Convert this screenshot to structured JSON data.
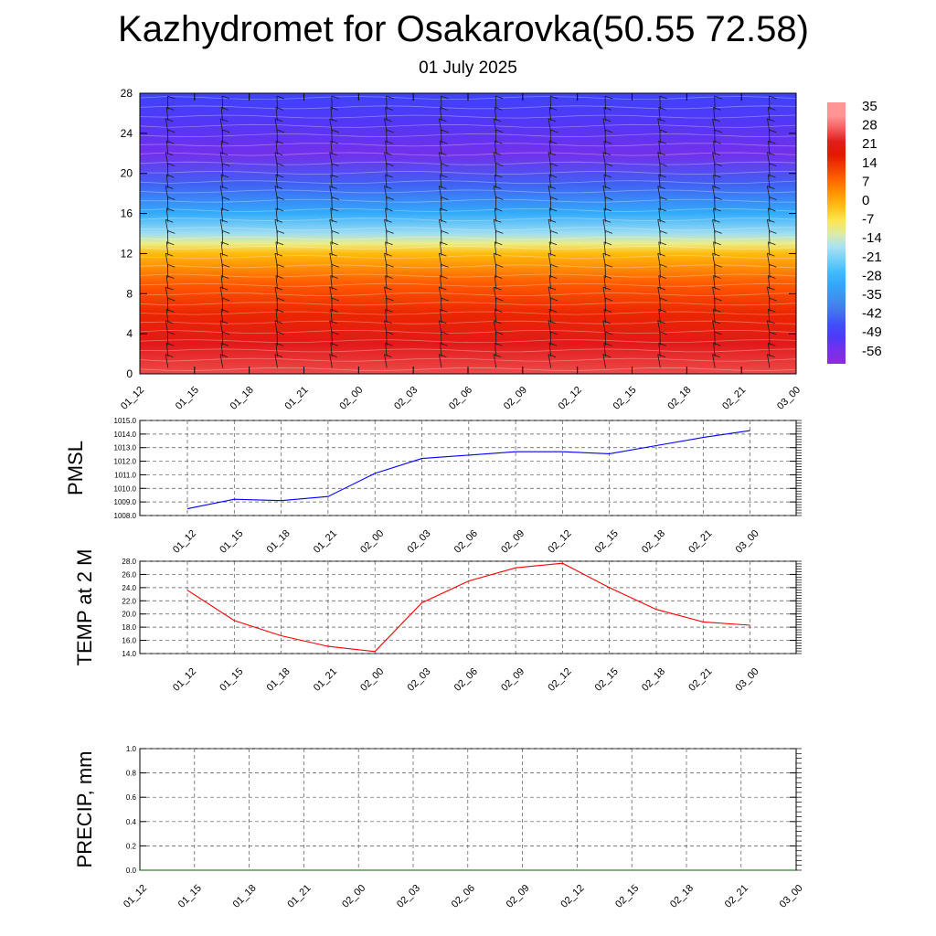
{
  "title": "Kazhydromet for Osakarovka(50.55 72.58)",
  "subtitle": "01 July 2025",
  "colors": {
    "pmsl_line": "#0000ff",
    "temp_line": "#ff0000",
    "precip_line": "#006400",
    "colormap": [
      "#8a2be2",
      "#3c3cff",
      "#4682e6",
      "#2eb4ff",
      "#b4e6f0",
      "#fff064",
      "#ffb400",
      "#ff5a00",
      "#dc0000",
      "#ff9696"
    ]
  },
  "chart_data": [
    {
      "type": "heatmap",
      "title": "",
      "ylim": [
        0,
        28
      ],
      "y_ticks": [
        "0",
        "4",
        "8",
        "12",
        "16",
        "20",
        "24",
        "28"
      ],
      "x": [
        "01_12",
        "01_15",
        "01_18",
        "01_21",
        "02_00",
        "02_03",
        "02_06",
        "02_09",
        "02_12",
        "02_15",
        "02_18",
        "02_21",
        "03_00"
      ],
      "colorbar_labels": [
        "35",
        "28",
        "21",
        "14",
        "7",
        "0",
        "-7",
        "-14",
        "-21",
        "-28",
        "-35",
        "-42",
        "-49",
        "-56"
      ],
      "profile_by_height": [
        {
          "y": 0,
          "value": 30
        },
        {
          "y": 3,
          "value": 26
        },
        {
          "y": 6,
          "value": 19
        },
        {
          "y": 9,
          "value": 12
        },
        {
          "y": 12,
          "value": 1
        },
        {
          "y": 13,
          "value": -9
        },
        {
          "y": 14,
          "value": -17
        },
        {
          "y": 16,
          "value": -30
        },
        {
          "y": 19,
          "value": -45
        },
        {
          "y": 22,
          "value": -57
        },
        {
          "y": 25,
          "value": -53
        },
        {
          "y": 28,
          "value": -49
        }
      ],
      "wind_barbs": "on"
    },
    {
      "type": "line",
      "ylabel": "PMSL",
      "ylim": [
        1008.0,
        1015.0
      ],
      "y_ticks": [
        "1008.0",
        "1009.0",
        "1010.0",
        "1011.0",
        "1012.0",
        "1013.0",
        "1014.0",
        "1015.0"
      ],
      "x": [
        "01_12",
        "01_15",
        "01_18",
        "01_21",
        "02_00",
        "02_03",
        "02_06",
        "02_09",
        "02_12",
        "02_15",
        "02_18",
        "02_21",
        "03_00"
      ],
      "values": [
        1008.5,
        1009.2,
        1009.1,
        1009.4,
        1011.1,
        1012.2,
        1012.45,
        1012.7,
        1012.7,
        1012.55,
        1013.15,
        1013.75,
        1014.25
      ],
      "grid": "dashed"
    },
    {
      "type": "line",
      "ylabel": "TEMP at 2 M",
      "ylim": [
        14.0,
        28.0
      ],
      "y_ticks": [
        "14.0",
        "16.0",
        "18.0",
        "20.0",
        "22.0",
        "24.0",
        "26.0",
        "28.0"
      ],
      "x": [
        "01_12",
        "01_15",
        "01_18",
        "01_21",
        "02_00",
        "02_03",
        "02_06",
        "02_09",
        "02_12",
        "02_15",
        "02_18",
        "02_21",
        "03_00"
      ],
      "values": [
        23.6,
        19.0,
        16.7,
        15.1,
        14.3,
        21.7,
        25.0,
        27.0,
        27.7,
        24.0,
        20.7,
        18.8,
        18.3
      ],
      "grid": "dashed"
    },
    {
      "type": "line",
      "ylabel": "PRECIP, mm",
      "ylim": [
        0.0,
        1.0
      ],
      "y_ticks": [
        "0.0",
        "0.2",
        "0.4",
        "0.6",
        "0.8",
        "1.0"
      ],
      "x": [
        "01_12",
        "01_15",
        "01_18",
        "01_21",
        "02_00",
        "02_03",
        "02_06",
        "02_09",
        "02_12",
        "02_15",
        "02_18",
        "02_21",
        "03_00"
      ],
      "values": [
        0,
        0,
        0,
        0,
        0,
        0,
        0,
        0,
        0,
        0,
        0,
        0,
        0
      ],
      "grid": "dashed"
    }
  ]
}
